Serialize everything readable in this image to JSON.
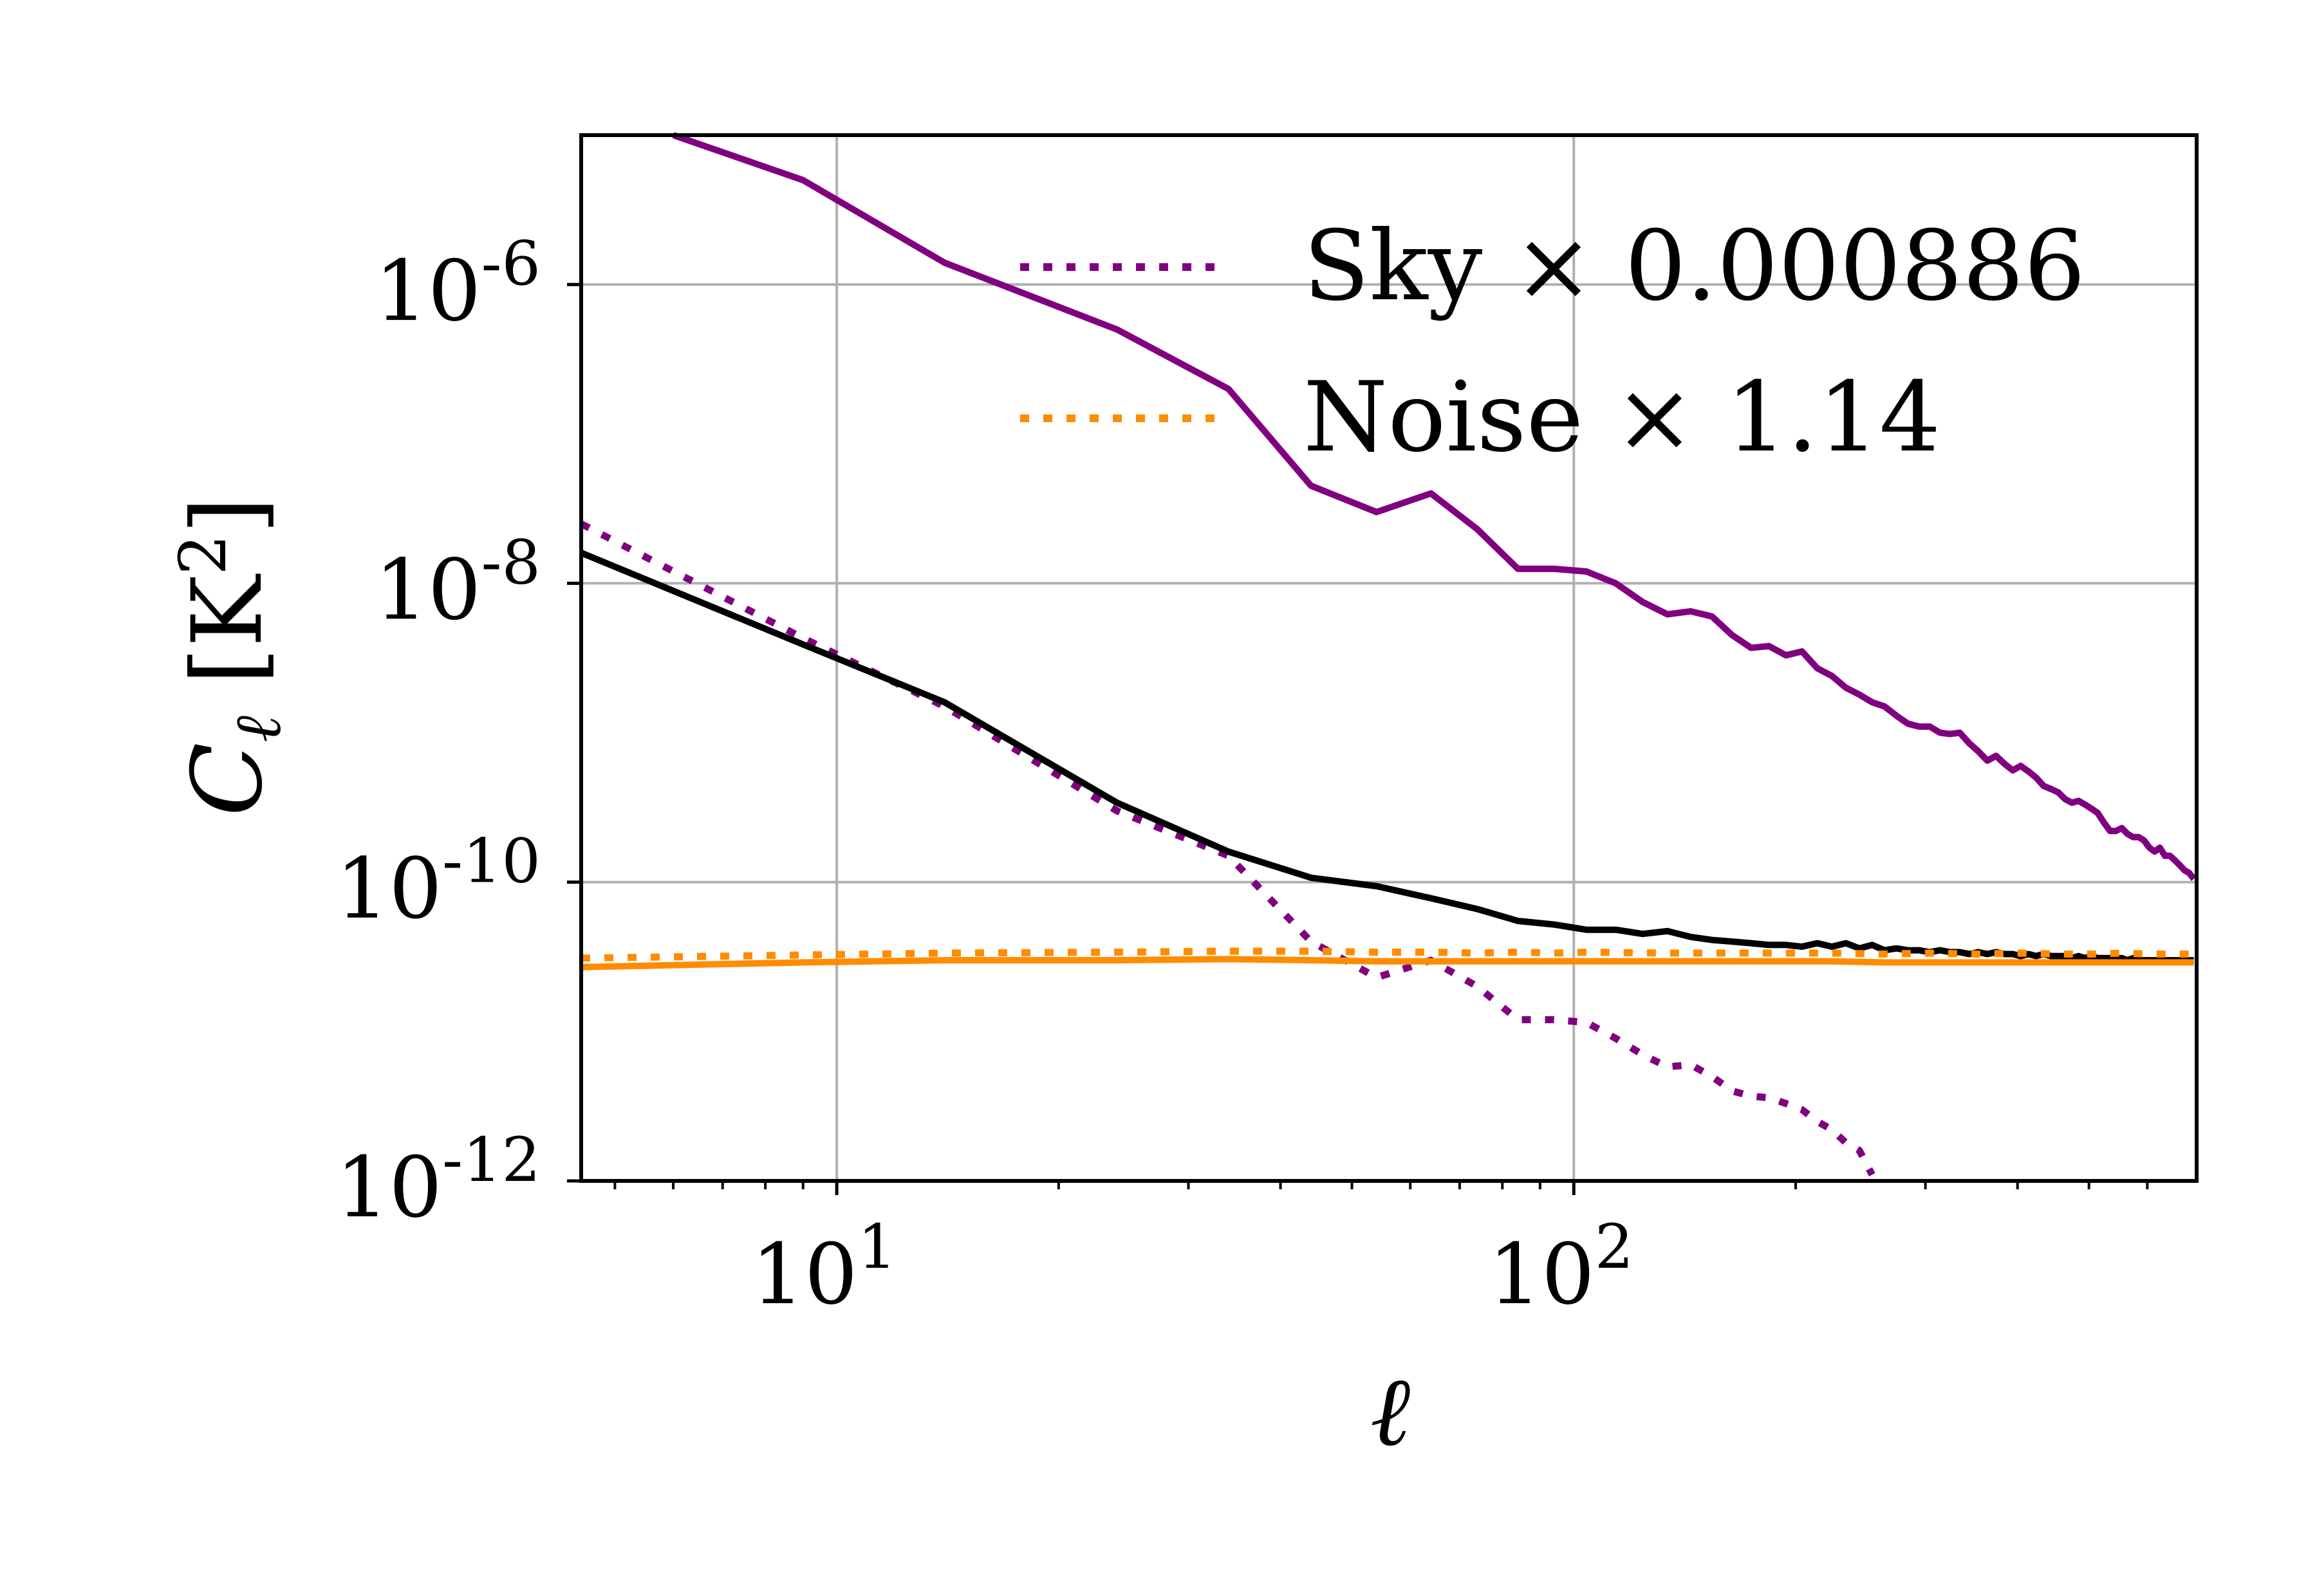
{
  "chart_data": {
    "type": "line",
    "title": "",
    "xlabel": "ℓ",
    "ylabel": "C_ℓ [K^2]",
    "xscale": "log",
    "yscale": "log",
    "xlim": [
      4.5,
      700
    ],
    "ylim": [
      1e-12,
      1e-05
    ],
    "grid": true,
    "legend_position": "top-right",
    "x_ticks": [
      {
        "value": 10,
        "base": "10",
        "exp": "1"
      },
      {
        "value": 100,
        "base": "10",
        "exp": "2"
      }
    ],
    "y_ticks": [
      {
        "value": 1e-06,
        "base": "10",
        "exp": "-6"
      },
      {
        "value": 1e-08,
        "base": "10",
        "exp": "-8"
      },
      {
        "value": 1e-10,
        "base": "10",
        "exp": "-10"
      },
      {
        "value": 1e-12,
        "base": "10",
        "exp": "-12"
      }
    ],
    "legend": [
      {
        "label": "Sky × 0.000886",
        "color": "#800080",
        "style": "dotted"
      },
      {
        "label": "Noise × 1.14",
        "color": "#ff8c00",
        "style": "dotted"
      }
    ],
    "series": [
      {
        "color": "#800080",
        "style": "solid",
        "x": [
          6,
          9,
          14,
          24,
          34,
          44,
          54,
          64,
          74,
          84,
          94,
          104,
          114,
          124,
          134,
          144,
          154,
          164,
          174,
          184,
          194,
          204,
          214,
          224,
          234,
          244,
          254,
          264,
          274,
          284,
          294,
          304,
          314,
          324,
          334,
          344,
          354,
          364,
          374,
          384,
          394,
          404,
          414,
          424,
          434,
          444,
          454,
          464,
          474,
          484,
          494,
          504,
          514,
          524,
          534,
          544,
          554,
          564,
          574,
          584,
          594,
          604,
          614,
          624,
          634,
          644,
          654,
          664,
          674,
          684,
          694
        ],
        "y": [
          1e-05,
          5e-06,
          1.4e-06,
          5e-07,
          2e-07,
          4.5e-08,
          3e-08,
          4e-08,
          2.3e-08,
          1.25e-08,
          1.25e-08,
          1.2e-08,
          1e-08,
          7.5e-09,
          6.2e-09,
          6.5e-09,
          6e-09,
          4.5e-09,
          3.7e-09,
          3.8e-09,
          3.3e-09,
          3.5e-09,
          2.7e-09,
          2.4e-09,
          2e-09,
          1.8e-09,
          1.6e-09,
          1.5e-09,
          1.3e-09,
          1.15e-09,
          1.1e-09,
          1.1e-09,
          1e-09,
          9.8e-10,
          1e-09,
          8.5e-10,
          7.5e-10,
          6.5e-10,
          7e-10,
          6.2e-10,
          5.6e-10,
          6e-10,
          5.5e-10,
          5e-10,
          4.4e-10,
          4.2e-10,
          4e-10,
          3.6e-10,
          3.4e-10,
          3.5e-10,
          3.3e-10,
          3.1e-10,
          2.9e-10,
          2.5e-10,
          2.2e-10,
          2.2e-10,
          2.3e-10,
          2.1e-10,
          2e-10,
          2e-10,
          1.9e-10,
          1.7e-10,
          1.6e-10,
          1.7e-10,
          1.5e-10,
          1.5e-10,
          1.4e-10,
          1.3e-10,
          1.2e-10,
          1.15e-10,
          1.05e-10
        ]
      },
      {
        "color": "#800080",
        "style": "dotted",
        "x": [
          4.5,
          9,
          14,
          24,
          34,
          44,
          54,
          64,
          74,
          84,
          94,
          104,
          114,
          124,
          134,
          144,
          154,
          164,
          174,
          184,
          194,
          204,
          214,
          224,
          234,
          244,
          254
        ],
        "y": [
          2.5e-08,
          4.3e-09,
          1.5e-09,
          3e-10,
          1.5e-10,
          4e-11,
          2.3e-11,
          3e-11,
          2e-11,
          1.2e-11,
          1.2e-11,
          1.15e-11,
          9e-12,
          7e-12,
          5.8e-12,
          6e-12,
          5e-12,
          4e-12,
          3.7e-12,
          3.6e-12,
          3.3e-12,
          3e-12,
          2.5e-12,
          2.2e-12,
          1.8e-12,
          1.6e-12,
          1.1e-12
        ]
      },
      {
        "color": "#000000",
        "style": "solid",
        "x": [
          4.5,
          9,
          14,
          24,
          34,
          44,
          54,
          64,
          74,
          84,
          94,
          104,
          114,
          124,
          134,
          144,
          154,
          164,
          174,
          184,
          194,
          204,
          214,
          224,
          234,
          244,
          254,
          264,
          274,
          284,
          294,
          304,
          314,
          324,
          334,
          344,
          354,
          364,
          374,
          384,
          394,
          404,
          414,
          424,
          434,
          444,
          454,
          464,
          474,
          484,
          494,
          504,
          514,
          524,
          534,
          544,
          554,
          564,
          574,
          584,
          594,
          604,
          614,
          624,
          634,
          644,
          654,
          664,
          674,
          684,
          694
        ],
        "y": [
          1.6e-08,
          3.9e-09,
          1.6e-09,
          3.4e-10,
          1.6e-10,
          1.07e-10,
          9.4e-11,
          7.8e-11,
          6.6e-11,
          5.5e-11,
          5.2e-11,
          4.8e-11,
          4.8e-11,
          4.5e-11,
          4.7e-11,
          4.3e-11,
          4.1e-11,
          4e-11,
          3.9e-11,
          3.8e-11,
          3.8e-11,
          3.7e-11,
          3.9e-11,
          3.7e-11,
          3.9e-11,
          3.6e-11,
          3.8e-11,
          3.5e-11,
          3.6e-11,
          3.5e-11,
          3.5e-11,
          3.4e-11,
          3.5e-11,
          3.4e-11,
          3.4e-11,
          3.3e-11,
          3.4e-11,
          3.3e-11,
          3.4e-11,
          3.3e-11,
          3.3e-11,
          3.2e-11,
          3.3e-11,
          3.2e-11,
          3.3e-11,
          3.2e-11,
          3.2e-11,
          3.2e-11,
          3.1e-11,
          3.2e-11,
          3.1e-11,
          3.2e-11,
          3.1e-11,
          3.1e-11,
          3.1e-11,
          3.1e-11,
          3.1e-11,
          3e-11,
          3.1e-11,
          3e-11,
          3e-11,
          3e-11,
          3e-11,
          3e-11,
          3e-11,
          3e-11,
          3e-11,
          3e-11,
          3e-11,
          3e-11,
          3e-11
        ]
      },
      {
        "color": "#ff8c00",
        "style": "solid",
        "x": [
          4.5,
          9,
          14,
          24,
          34,
          44,
          54,
          64,
          74,
          84,
          94,
          104,
          134,
          164,
          194,
          224,
          264,
          304,
          354,
          404,
          454,
          504,
          554,
          604,
          654,
          694
        ],
        "y": [
          2.7e-11,
          2.9e-11,
          3e-11,
          3e-11,
          3.05e-11,
          3e-11,
          2.95e-11,
          2.95e-11,
          2.95e-11,
          2.95e-11,
          2.95e-11,
          2.95e-11,
          2.95e-11,
          2.95e-11,
          2.95e-11,
          2.95e-11,
          2.9e-11,
          2.9e-11,
          2.9e-11,
          2.9e-11,
          2.9e-11,
          2.9e-11,
          2.9e-11,
          2.9e-11,
          2.9e-11,
          2.9e-11
        ]
      },
      {
        "color": "#ff8c00",
        "style": "dotted",
        "x": [
          4.5,
          9,
          14,
          24,
          34,
          44,
          54,
          64,
          74,
          84,
          94,
          104,
          134,
          164,
          194,
          224,
          264,
          304,
          354,
          404,
          454,
          504,
          554,
          604,
          654,
          694
        ],
        "y": [
          3.1e-11,
          3.25e-11,
          3.35e-11,
          3.4e-11,
          3.45e-11,
          3.45e-11,
          3.4e-11,
          3.4e-11,
          3.35e-11,
          3.4e-11,
          3.35e-11,
          3.4e-11,
          3.35e-11,
          3.35e-11,
          3.35e-11,
          3.35e-11,
          3.3e-11,
          3.35e-11,
          3.3e-11,
          3.35e-11,
          3.3e-11,
          3.3e-11,
          3.35e-11,
          3.3e-11,
          3.3e-11,
          3.3e-11
        ]
      }
    ]
  }
}
